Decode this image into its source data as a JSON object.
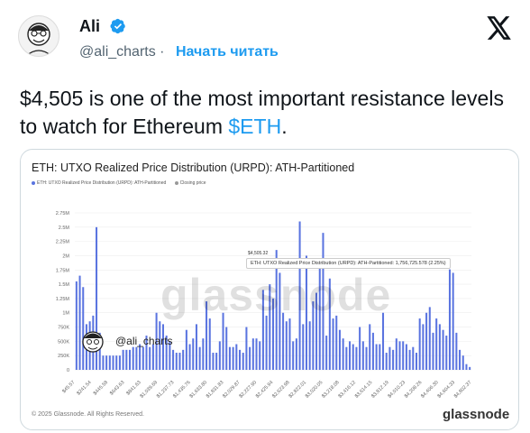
{
  "author": {
    "name": "Ali",
    "handle": "@ali_charts",
    "separator": "·",
    "follow_label": "Начать читать"
  },
  "tweet": {
    "text_main": "$4,505 is one of the most important resistance levels to watch for Ethereum ",
    "tag": "$ETH",
    "text_end": "."
  },
  "card": {
    "chart_title": "ETH: UTXO Realized Price Distribution (URPD): ATH-Partitioned",
    "legend_series": "ETH: UTXO Realized Price Distribution (URPD): ATH-Partitioned",
    "legend_close": "Closing price",
    "watermark": "glassnode",
    "stamp_handle": "@ali_charts",
    "tooltip_price": "$4,505.32",
    "tooltip_text": "ETH: UTXO Realized Price Distribution (URPD): ATH-Partitioned: 1,756,725.578 (2.25%)",
    "footer": "© 2025 Glassnode. All Rights Reserved.",
    "brand": "glassnode"
  },
  "colors": {
    "bar": "#5a74e0",
    "link": "#1d9bf0",
    "muted": "#536471"
  },
  "icons": [
    "avatar",
    "verified-badge-icon",
    "x-logo-icon"
  ],
  "chart_data": {
    "type": "bar",
    "title": "ETH: UTXO Realized Price Distribution (URPD): ATH-Partitioned",
    "ylim": [
      0,
      2750000
    ],
    "y_ticks": [
      "2.75M",
      "2.5M",
      "2.25M",
      "2M",
      "1.75M",
      "1.5M",
      "1.25M",
      "1M",
      "750K",
      "500K",
      "250K",
      "0"
    ],
    "x_ticks": [
      "$45.57",
      "$241.54",
      "$445.58",
      "$643.63",
      "$841.63",
      "$1,039.69",
      "$1,237.73",
      "$1,435.76",
      "$1,633.80",
      "$1,831.83",
      "$2,029.87",
      "$2,227.90",
      "$2,425.94",
      "$2,623.98",
      "$2,822.01",
      "$3,020.05",
      "$3,218.08",
      "$3,416.12",
      "$3,614.15",
      "$3,812.19",
      "$4,010.23",
      "$4,208.26",
      "$4,406.30",
      "$4,604.33",
      "$4,802.37"
    ],
    "values": [
      1550000,
      1650000,
      1450000,
      800000,
      850000,
      950000,
      2500000,
      650000,
      250000,
      250000,
      250000,
      250000,
      250000,
      250000,
      350000,
      350000,
      350000,
      400000,
      400000,
      450000,
      400000,
      600000,
      400000,
      450000,
      1000000,
      850000,
      800000,
      600000,
      500000,
      350000,
      300000,
      300000,
      350000,
      700000,
      450000,
      550000,
      800000,
      400000,
      550000,
      1200000,
      900000,
      300000,
      300000,
      500000,
      1000000,
      750000,
      400000,
      400000,
      450000,
      350000,
      300000,
      750000,
      400000,
      550000,
      550000,
      500000,
      1400000,
      950000,
      1500000,
      1250000,
      2100000,
      1700000,
      1000000,
      850000,
      900000,
      500000,
      550000,
      2600000,
      800000,
      2000000,
      850000,
      1200000,
      1350000,
      1800000,
      2400000,
      600000,
      1600000,
      900000,
      950000,
      700000,
      550000,
      400000,
      500000,
      450000,
      400000,
      750000,
      500000,
      400000,
      800000,
      650000,
      450000,
      450000,
      1000000,
      300000,
      400000,
      350000,
      550000,
      500000,
      500000,
      450000,
      350000,
      400000,
      300000,
      900000,
      800000,
      1000000,
      1100000,
      650000,
      900000,
      800000,
      700000,
      600000,
      1760000,
      1700000,
      650000,
      350000,
      250000,
      100000,
      50000
    ],
    "highlight": {
      "label": "$4,505.32",
      "value": 1756725.578,
      "share": "2.25%"
    }
  }
}
